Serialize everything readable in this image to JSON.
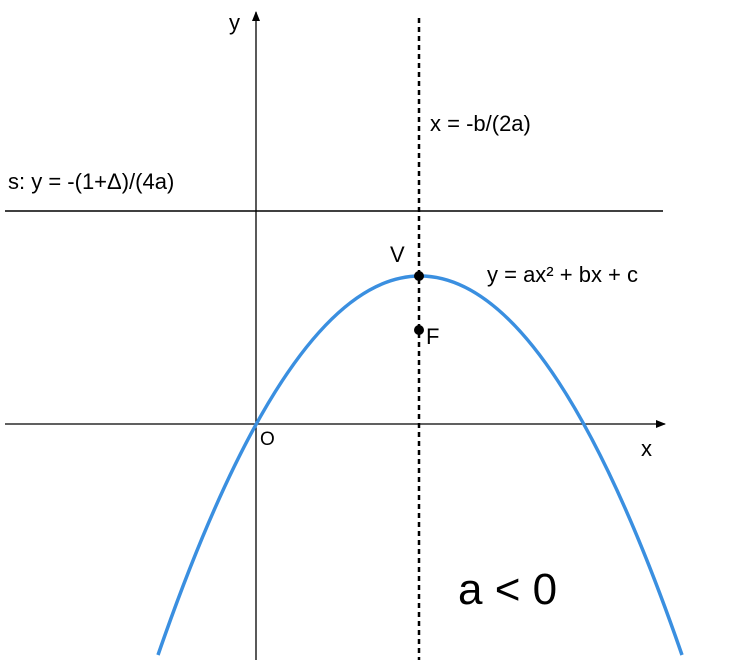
{
  "axes": {
    "y_label": "y",
    "x_label": "x",
    "origin_label": "O"
  },
  "axis_of_symmetry": "x = -b/(2a)",
  "directrix": "s: y = -(1+Δ)/(4a)",
  "points": {
    "vertex": "V",
    "focus": "F"
  },
  "curve_equation": "y = ax² + bx + c",
  "condition": "a < 0"
}
